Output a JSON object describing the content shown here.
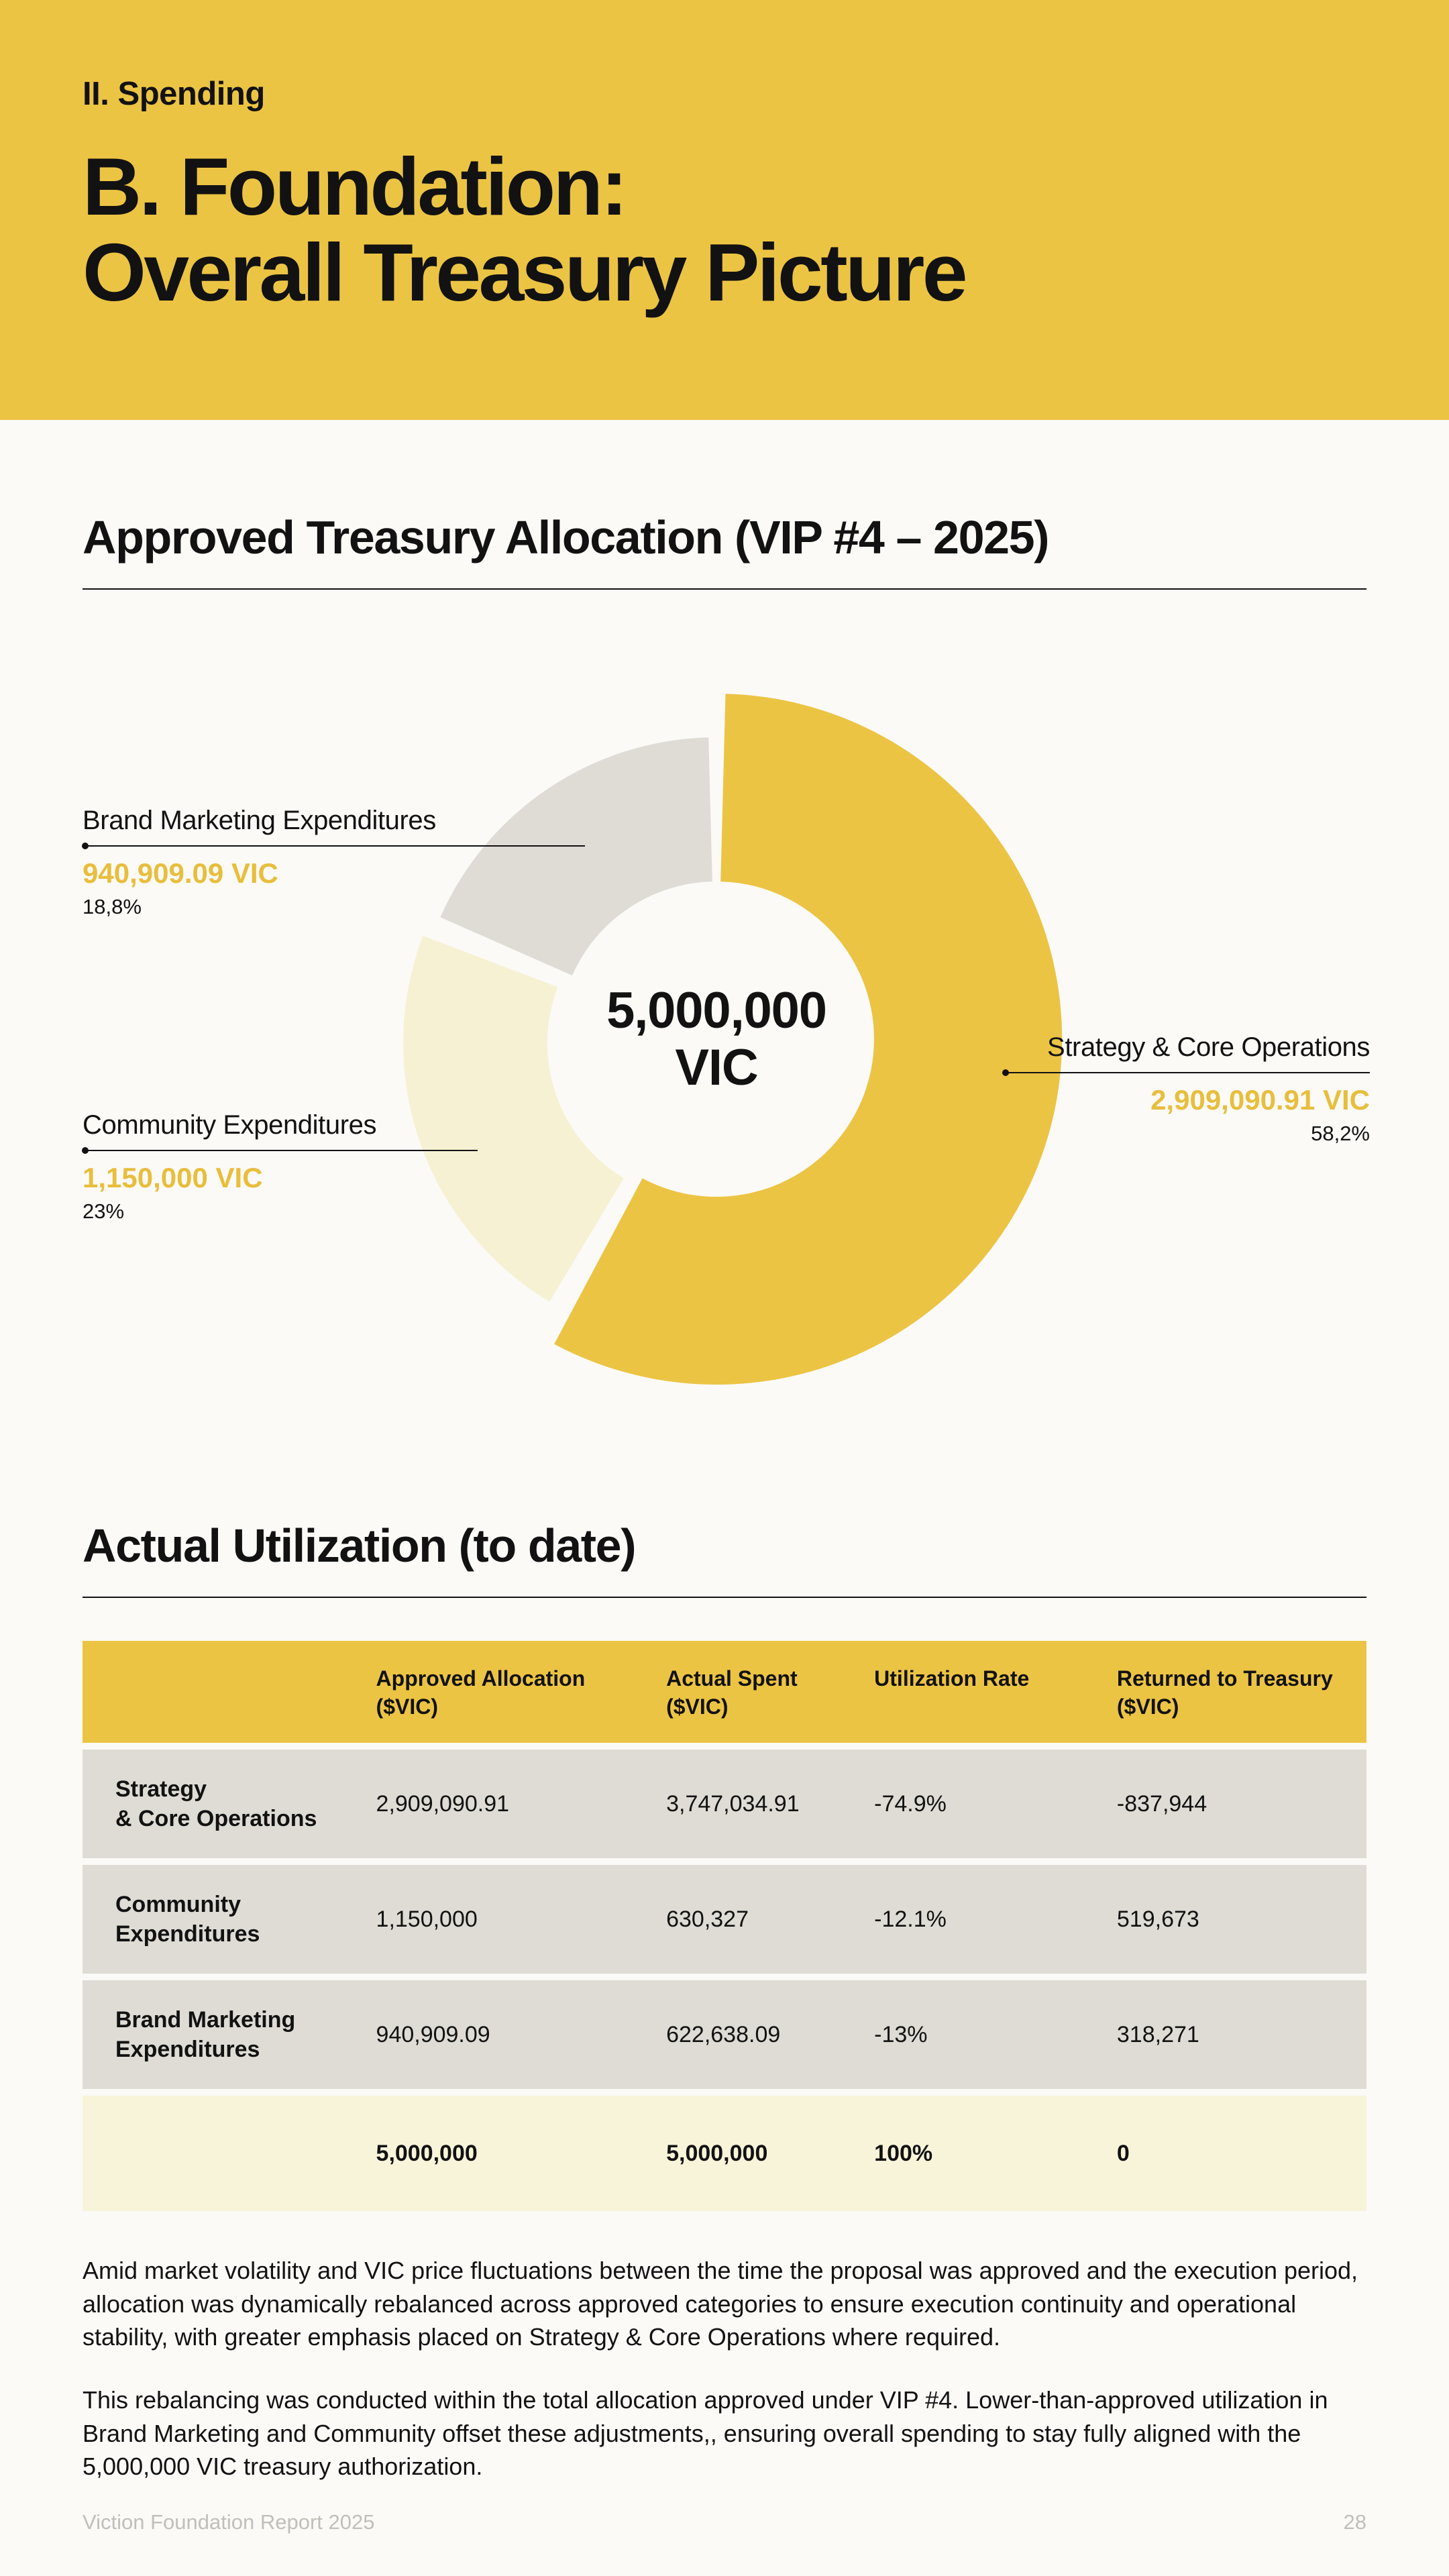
{
  "page": {
    "eyebrow": "II. Spending",
    "title": "B. Foundation:\nOverall Treasury Picture",
    "footer_left": "Viction Foundation Report 2025",
    "page_number": "28"
  },
  "colors": {
    "banner_yellow": "#ECC444",
    "accent_yellow": "#E8BE3C",
    "slice_cream": "#F6F1D3",
    "slice_gray": "#DEDCD5",
    "table_row_gray": "#DEDCD4",
    "table_total_cream": "#F8F4D9",
    "page_bg": "#FBFAF7",
    "text_black": "#121212",
    "footer_gray": "#C0BFB8"
  },
  "allocation_section": {
    "heading": "Approved Treasury Allocation (VIP #4 – 2025)",
    "center_value": "5,000,000",
    "center_unit": "VIC"
  },
  "chart_data": {
    "type": "pie",
    "subtype": "donut",
    "title": "Approved Treasury Allocation (VIP #4 – 2025)",
    "center_label": "5,000,000 VIC",
    "total_vic": 5000000,
    "slices": [
      {
        "label": "Strategy & Core Operations",
        "value_vic": 2909090.91,
        "value_label": "2,909,090.91 VIC",
        "percent": 58.2,
        "percent_label": "58,2%",
        "color": "#ECC444"
      },
      {
        "label": "Community Expenditures",
        "value_vic": 1150000,
        "value_label": "1,150,000 VIC",
        "percent": 23.0,
        "percent_label": "23%",
        "color": "#F6F1D3"
      },
      {
        "label": "Brand Marketing Expenditures",
        "value_vic": 940909.09,
        "value_label": "940,909.09 VIC",
        "percent": 18.8,
        "percent_label": "18,8%",
        "color": "#DEDCD5"
      }
    ]
  },
  "utilization_section": {
    "heading": "Actual Utilization (to date)",
    "table": {
      "columns": [
        "",
        "Approved Allocation\n($VIC)",
        "Actual Spent\n($VIC)",
        "Utilization Rate",
        "Returned to Treasury\n($VIC)"
      ],
      "rows": [
        {
          "label": "Strategy\n& Core Operations",
          "approved": "2,909,090.91",
          "spent": "3,747,034.91",
          "rate": "-74.9%",
          "returned": "-837,944"
        },
        {
          "label": "Community\nExpenditures",
          "approved": "1,150,000",
          "spent": "630,327",
          "rate": "-12.1%",
          "returned": "519,673"
        },
        {
          "label": "Brand Marketing\nExpenditures",
          "approved": "940,909.09",
          "spent": "622,638.09",
          "rate": "-13%",
          "returned": "318,271"
        }
      ],
      "total_row": {
        "approved": "5,000,000",
        "spent": "5,000,000",
        "rate": "100%",
        "returned": "0"
      }
    },
    "paragraphs": [
      "Amid market volatility and VIC price fluctuations between the time the proposal was approved and the execution period, allocation was dynamically rebalanced across approved categories to ensure execution continuity and operational stability, with greater emphasis placed on Strategy & Core Operations where required.",
      "This rebalancing was conducted within the total allocation approved under VIP #4. Lower-than-approved utilization in Brand Marketing and Community offset these adjustments,, ensuring overall spending to stay fully aligned with the 5,000,000 VIC treasury authorization."
    ]
  }
}
